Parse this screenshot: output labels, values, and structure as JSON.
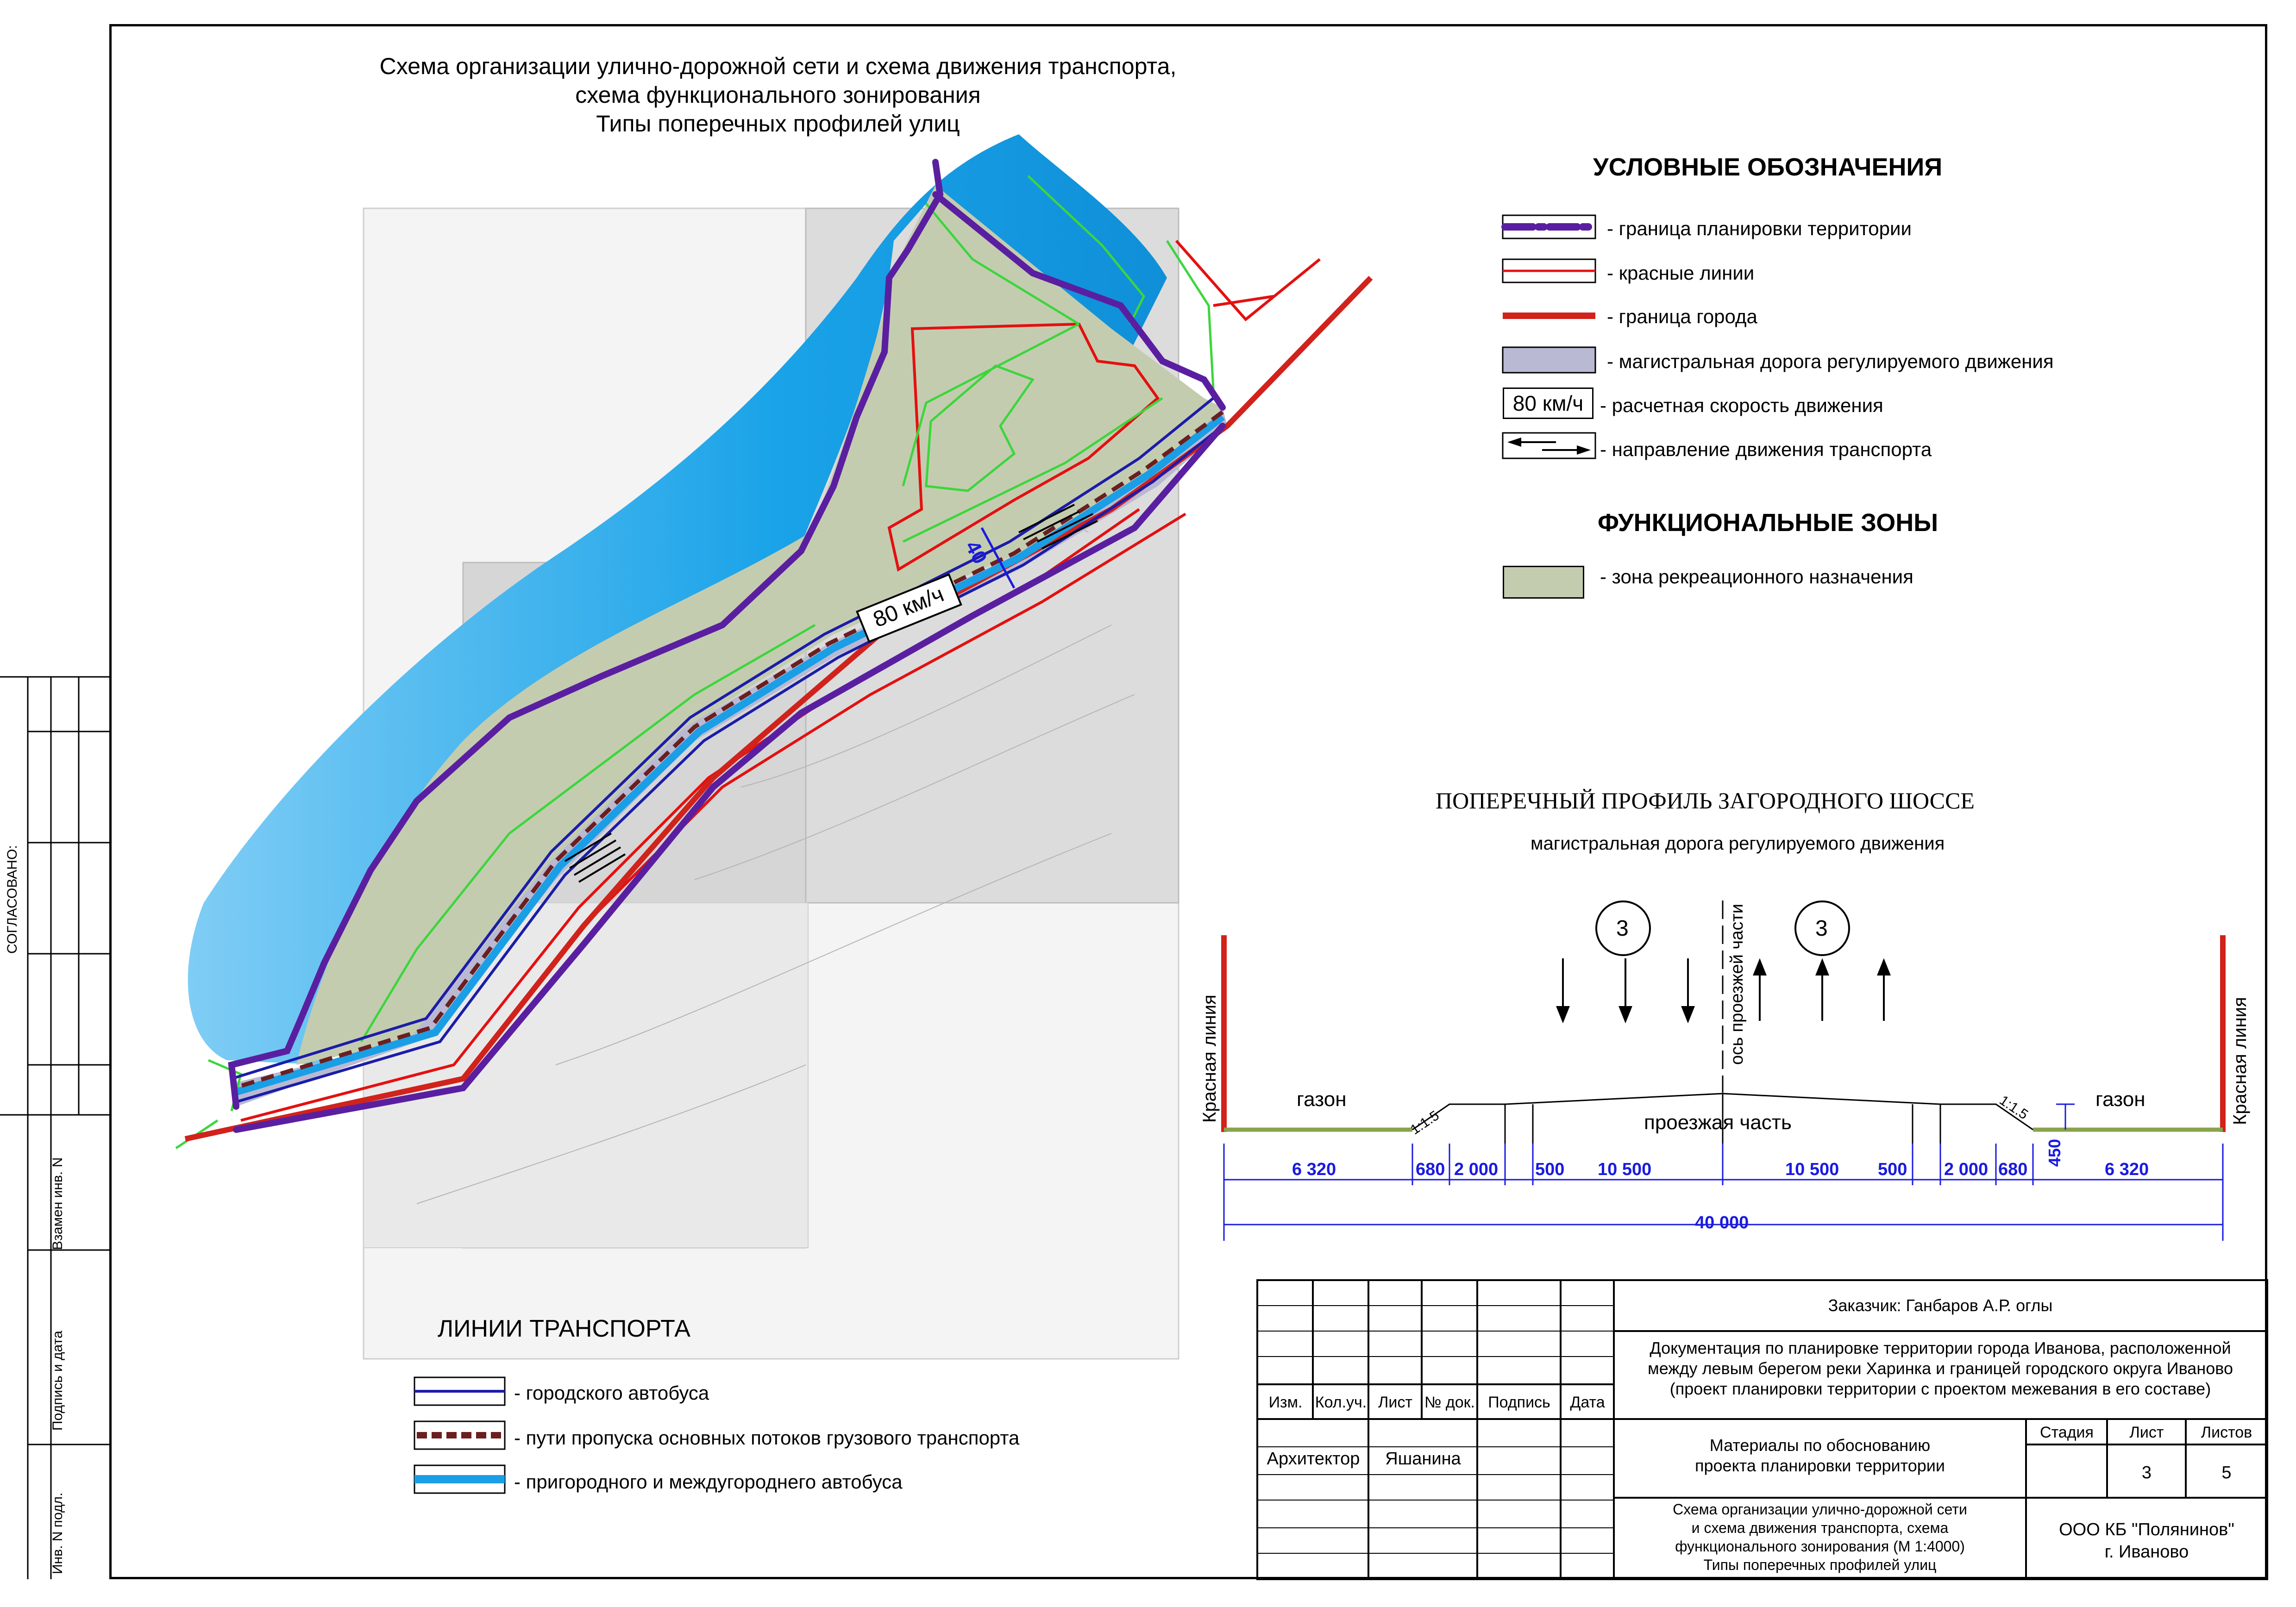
{
  "title": {
    "line1": "Схема организации улично-дорожной сети и схема движения транспорта,",
    "line2": "схема функционального зонирования",
    "line3": "Типы поперечных профилей улиц"
  },
  "legend": {
    "heading": "УСЛОВНЫЕ ОБОЗНАЧЕНИЯ",
    "items": [
      {
        "label": "- граница планировки территории"
      },
      {
        "label": "- красные линии"
      },
      {
        "label": "- граница города"
      },
      {
        "label": "- магистральная дорога регулируемого движения"
      },
      {
        "label": "- расчетная скорость движения",
        "badge": "80 км/ч"
      },
      {
        "label": "- направление движения транспорта"
      }
    ],
    "zones_heading": "ФУНКЦИОНАЛЬНЫЕ ЗОНЫ",
    "zones": [
      {
        "label": "- зона рекреационного назначения"
      }
    ]
  },
  "map": {
    "speed_label": "80 км/ч",
    "width_label": "40"
  },
  "transport": {
    "heading": "ЛИНИИ ТРАНСПОРТА",
    "items": [
      {
        "label": "- городского автобуса"
      },
      {
        "label": "- пути пропуска основных потоков грузового транспорта"
      },
      {
        "label": "- пригородного и междугороднего автобуса"
      }
    ]
  },
  "profile": {
    "title": "ПОПЕРЕЧНЫЙ ПРОФИЛЬ ЗАГОРОДНОГО ШОССЕ",
    "subtitle": "магистральная дорога регулируемого движения",
    "lanes_left": "3",
    "lanes_right": "3",
    "axis_label": "ось проезжей части",
    "red_line_left": "Красная линия",
    "red_line_right": "Красная линия",
    "lawn_left": "газон",
    "lawn_right": "газон",
    "carriageway": "проезжая часть",
    "slope_left": "1:1.5",
    "slope_right": "1:1.5",
    "height": "450",
    "dims": [
      "6 320",
      "680",
      "2 000",
      "500",
      "10 500",
      "10 500",
      "500",
      "2 000",
      "680",
      "6 320"
    ],
    "total": "40 000"
  },
  "stamp": {
    "customer": "Заказчик: Ганбаров А.Р. оглы",
    "doc_line1": "Документация по планировке  территории города Иванова, расположенной",
    "doc_line2": "между левым берегом реки Харинка и границей городского округа Иваново",
    "doc_line3": "(проект планировки территории с проектом межевания в его составе)",
    "headers": [
      "Изм.",
      "Кол.уч.",
      "Лист",
      "№ док.",
      "Подпись",
      "Дата"
    ],
    "role": "Архитектор",
    "person": "Яшанина",
    "materials_line1": "Материалы по обоснованию",
    "materials_line2": "проекта планировки территории",
    "stage_h": "Стадия",
    "sheet_h": "Лист",
    "sheets_h": "Листов",
    "sheet": "3",
    "sheets": "5",
    "sheet_title1": "Схема организации улично-дорожной сети",
    "sheet_title2": "и схема движения транспорта, схема",
    "sheet_title3": "функционального зонирования (М 1:4000)",
    "sheet_title4": "Типы поперечных профилей улиц",
    "org1": "ООО КБ \"Полянинов\"",
    "org2": "г. Иваново"
  },
  "side": {
    "agreed": "СОГЛАСОВАНО:",
    "replace": "Взамен инв. N",
    "signdate": "Подпись и дата",
    "invno": "Инв. N подл."
  },
  "colors": {
    "boundary": "#5a1fa0",
    "red_line": "#e41010",
    "city_border": "#d1221b",
    "road_fill": "#b9b9d3",
    "recreation": "#c4ccb0",
    "water": "#1aa3e8",
    "bus_city": "#1c1ca8",
    "freight": "#6b1f1f",
    "bus_intercity": "#1a9ee6",
    "dim_blue": "#1a1ae0"
  }
}
